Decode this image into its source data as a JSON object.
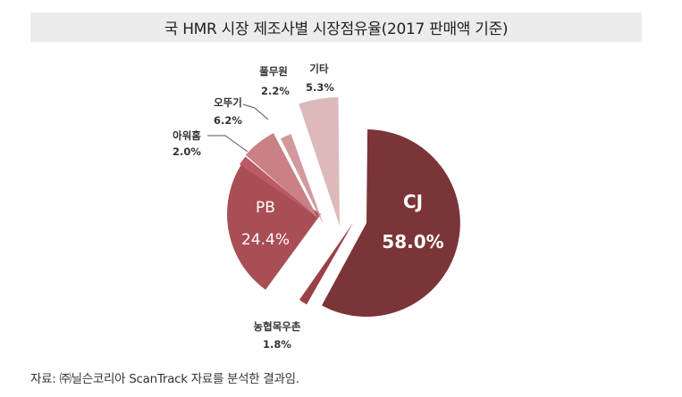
{
  "chart_data": {
    "type": "pie",
    "title": "국 HMR 시장 제조사별 시장점유율(2017 판매액 기준)",
    "unit": "%",
    "slices": [
      {
        "label": "CJ",
        "value": 58.0,
        "value_label": "58.0%",
        "color": "#7b3538",
        "label_color": "#ffffff"
      },
      {
        "label": "농협목우촌",
        "value": 1.8,
        "value_label": "1.8%",
        "color": "#9a4148",
        "label_color": "#333333"
      },
      {
        "label": "PB",
        "value": 24.4,
        "value_label": "24.4%",
        "color": "#a94e55",
        "label_color": "#ffffff"
      },
      {
        "label": "아워홈",
        "value": 2.0,
        "value_label": "2.0%",
        "color": "#bd5a63",
        "label_color": "#333333"
      },
      {
        "label": "오뚜기",
        "value": 6.2,
        "value_label": "6.2%",
        "color": "#c98186",
        "label_color": "#333333"
      },
      {
        "label": "풀무원",
        "value": 2.2,
        "value_label": "2.2%",
        "color": "#d39a9e",
        "label_color": "#333333"
      },
      {
        "label": "기타",
        "value": 5.3,
        "value_label": "5.3%",
        "color": "#ddb9bb",
        "label_color": "#333333"
      }
    ],
    "legend": "none"
  },
  "source_note": "자료: ㈜닐슨코리아 ScanTrack 자료를 분석한 결과임."
}
